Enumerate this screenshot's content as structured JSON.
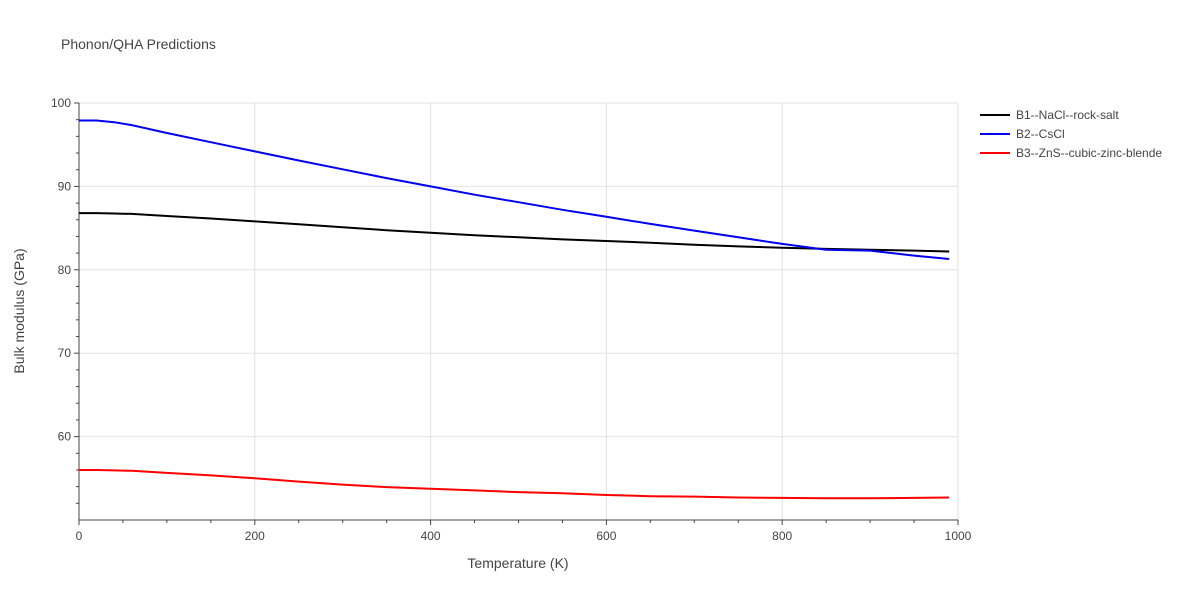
{
  "title": "Phonon/QHA Predictions",
  "chart_data": {
    "type": "line",
    "xlabel": "Temperature (K)",
    "ylabel": "Bulk modulus (GPa)",
    "xlim": [
      0,
      1000
    ],
    "ylim": [
      50,
      100
    ],
    "xticks": [
      0,
      200,
      400,
      600,
      800,
      1000
    ],
    "yticks": [
      60,
      70,
      80,
      90,
      100
    ],
    "grid": true,
    "legend_position": "top-right outside",
    "series": [
      {
        "name": "B1--NaCl--rock-salt",
        "color": "#000000",
        "x": [
          0,
          20,
          40,
          60,
          100,
          150,
          200,
          250,
          300,
          350,
          400,
          450,
          500,
          550,
          600,
          650,
          700,
          750,
          800,
          850,
          900,
          950,
          990
        ],
        "y": [
          86.8,
          86.8,
          86.75,
          86.7,
          86.45,
          86.15,
          85.8,
          85.45,
          85.1,
          84.75,
          84.45,
          84.15,
          83.9,
          83.65,
          83.45,
          83.25,
          83.0,
          82.8,
          82.65,
          82.5,
          82.4,
          82.3,
          82.2
        ]
      },
      {
        "name": "B2--CsCl",
        "color": "#0000ee",
        "x": [
          0,
          20,
          40,
          60,
          100,
          150,
          200,
          250,
          300,
          350,
          400,
          450,
          500,
          550,
          600,
          650,
          700,
          750,
          800,
          850,
          900,
          950,
          990
        ],
        "y": [
          97.9,
          97.9,
          97.7,
          97.35,
          96.4,
          95.3,
          94.2,
          93.1,
          92.05,
          91.0,
          90.0,
          89.0,
          88.1,
          87.2,
          86.35,
          85.5,
          84.7,
          83.9,
          83.1,
          82.4,
          82.3,
          81.7,
          81.3
        ]
      },
      {
        "name": "B3--ZnS--cubic-zinc-blende",
        "color": "#ff0000",
        "x": [
          0,
          20,
          40,
          60,
          100,
          150,
          200,
          250,
          300,
          350,
          400,
          450,
          500,
          550,
          600,
          650,
          700,
          750,
          800,
          850,
          900,
          950,
          990
        ],
        "y": [
          56.0,
          56.0,
          55.95,
          55.9,
          55.65,
          55.35,
          55.0,
          54.6,
          54.25,
          53.95,
          53.75,
          53.55,
          53.35,
          53.2,
          53.0,
          52.85,
          52.8,
          52.7,
          52.65,
          52.6,
          52.6,
          52.65,
          52.7
        ]
      }
    ]
  }
}
